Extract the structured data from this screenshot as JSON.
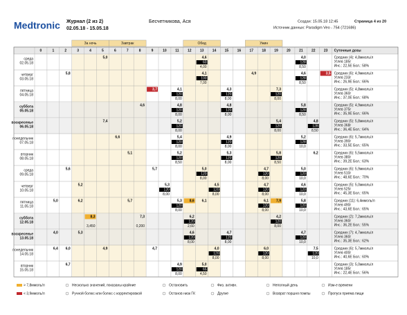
{
  "header": {
    "logo": "Medtronic",
    "title": "Журнал (2 из 2)",
    "period": "02.05.18 - 15.05.18",
    "patient": "Бесчетникова, Ася",
    "created": "Создан: 15.05.18 12:45",
    "page": "Страница 4 из 20",
    "source": "Источник данных: Paradigm Veo - 754 (721686)"
  },
  "bands": [
    {
      "label": "За ночь",
      "from": 3,
      "to": 5
    },
    {
      "label": "Завтрак",
      "from": 6,
      "to": 8
    },
    {
      "label": "Обед",
      "from": 12,
      "to": 14
    },
    {
      "label": "Ужин",
      "from": 17,
      "to": 19
    }
  ],
  "hours": [
    0,
    1,
    2,
    3,
    4,
    5,
    6,
    7,
    8,
    9,
    10,
    11,
    12,
    13,
    14,
    15,
    16,
    17,
    18,
    19,
    20,
    21,
    22,
    23
  ],
  "summary_header": "Суточные дозы",
  "rows": [
    {
      "day": "среда",
      "date": "02.05.18",
      "weekend": false,
      "avg": "Средних (4): 4,8ммоль/л",
      "carbs": "Углев 185г",
      "ins": "Инс.: 22,5Е Бол.: 58%",
      "cells": [
        {
          "h": 5,
          "bg": "5,0"
        },
        {
          "h": 13,
          "bg": "4,6",
          "c": "60",
          "i": "4,00"
        },
        {
          "h": 21,
          "bg": "4,0",
          "c": "128",
          "i": "8,50"
        }
      ]
    },
    {
      "day": "четверг",
      "date": "03.05.18",
      "weekend": false,
      "avg": "Средних (6): 4,9ммоль/л",
      "carbs": "Углев 233г",
      "ins": "Инс.: 26,9Е Бол.: 66%",
      "cells": [
        {
          "h": 2,
          "bg": "5,8"
        },
        {
          "h": 13,
          "bg": "4,1",
          "c": "100",
          "i": "7,00"
        },
        {
          "h": 17,
          "bg": "4,9"
        },
        {
          "h": 21,
          "bg": "4,6",
          "c": "128",
          "i": "8,50"
        },
        {
          "h": 23,
          "bg": "3,5",
          "f": "lo"
        }
      ]
    },
    {
      "day": "пятница",
      "date": "04.05.18",
      "weekend": false,
      "avg": "Средних (5): 4,8ммоль/л",
      "carbs": "Углев 360г",
      "ins": "Инс.: 37,0Е Бол.: 68%",
      "cells": [
        {
          "h": 9,
          "bg": "3,7",
          "f": "lo"
        },
        {
          "h": 11,
          "bg": "4,1",
          "c": "120",
          "i": "8,00"
        },
        {
          "h": 15,
          "bg": "4,3",
          "c": "120",
          "i": "8,00"
        },
        {
          "h": 19,
          "bg": "7,3",
          "c": "120",
          "i": "8,00"
        }
      ]
    },
    {
      "day": "суббота",
      "date": "05.05.18",
      "weekend": true,
      "avg": "Средних (5): 4,9ммоль/л",
      "carbs": "Углев 375г",
      "ins": "Инс.: 35,9Е Бол.: 66%",
      "cells": [
        {
          "h": 8,
          "bg": "4,6"
        },
        {
          "h": 11,
          "bg": "4,8",
          "c": "120",
          "i": "8,00"
        },
        {
          "h": 15,
          "bg": "4,8",
          "c": "120",
          "i": "8,00"
        },
        {
          "h": 21,
          "bg": "5,8",
          "c": "128",
          "i": "8,50"
        }
      ]
    },
    {
      "day": "воскресенье",
      "date": "06.05.18",
      "weekend": true,
      "avg": "Средних (5): 5,8ммоль/л",
      "carbs": "Углев 368г",
      "ins": "Инс.: 36,4Е Бол.: 64%",
      "cells": [
        {
          "h": 5,
          "bg": "7,4"
        },
        {
          "h": 11,
          "bg": "5,2",
          "c": "120",
          "i": "8,00"
        },
        {
          "h": 19,
          "bg": "5,4",
          "c": "120",
          "i": "8,00"
        },
        {
          "h": 22,
          "bg": "4,8",
          "c": "128",
          "i": "8,50"
        }
      ]
    },
    {
      "day": "понедельник",
      "date": "07.05.18",
      "weekend": false,
      "avg": "Средних (6): 5,7ммоль/л",
      "carbs": "Углев 390г",
      "ins": "Инс.: 33,5Е Бол.: 65%",
      "cells": [
        {
          "h": 6,
          "bg": "6,6"
        },
        {
          "h": 11,
          "bg": "5,4",
          "c": "120",
          "i": "8,00"
        },
        {
          "h": 15,
          "bg": "4,9",
          "c": "120",
          "i": "8,00"
        },
        {
          "h": 21,
          "bg": "5,2",
          "c": "128",
          "i": "10,0"
        }
      ]
    },
    {
      "day": "вторник",
      "date": "08.05.18",
      "weekend": false,
      "avg": "Средних (6): 5,5ммоль/л",
      "carbs": "Углев 380г",
      "ins": "Инс.: 39,2Е Бол.: 63%",
      "cells": [
        {
          "h": 7,
          "bg": "5,1"
        },
        {
          "h": 11,
          "bg": "5,2",
          "c": "120",
          "i": "8,50"
        },
        {
          "h": 15,
          "bg": "5,3",
          "c": "120",
          "i": "8,00"
        },
        {
          "h": 19,
          "bg": "5,8",
          "c": "120",
          "i": "8,50"
        },
        {
          "h": 22,
          "bg": "6,2"
        }
      ]
    },
    {
      "day": "среда",
      "date": "09.05.18",
      "weekend": false,
      "avg": "Средних (6): 5,9ммоль/л",
      "carbs": "Углев 510г",
      "ins": "Инс.: 48,6Е Бол.: 70%",
      "cells": [
        {
          "h": 2,
          "bg": "5,6"
        },
        {
          "h": 9,
          "bg": "5,7"
        },
        {
          "h": 13,
          "bg": "5,0",
          "c": "120",
          "i": "8,00"
        },
        {
          "h": 18,
          "bg": "4,7",
          "c": "120",
          "i": "8,00"
        },
        {
          "h": 21,
          "bg": "5,0",
          "c": "120",
          "i": "10,0"
        }
      ]
    },
    {
      "day": "четверг",
      "date": "10.05.18",
      "weekend": false,
      "avg": "Средних (5): 5,0ммоль/л",
      "carbs": "Углев 525г",
      "ins": "Инс.: 45,3Е Бол.: 65%",
      "cells": [
        {
          "h": 3,
          "bg": "5,2"
        },
        {
          "h": 10,
          "bg": "5,3",
          "c": "120",
          "i": "8,00"
        },
        {
          "h": 14,
          "bg": "4,5",
          "c": "120",
          "i": "8,00"
        },
        {
          "h": 18,
          "bg": "4,7",
          "c": "120",
          "i": "8,00"
        },
        {
          "h": 21,
          "bg": "4,6",
          "c": "120",
          "i": "10,0"
        }
      ]
    },
    {
      "day": "пятница",
      "date": "11.05.18",
      "weekend": false,
      "avg": "Средних (11): 6,4ммоль/л",
      "carbs": "Углев 490г",
      "ins": "Инс.: 43,6Е Бол.: 65%",
      "cells": [
        {
          "h": 1,
          "bg": "5,0"
        },
        {
          "h": 3,
          "bg": "6,2"
        },
        {
          "h": 7,
          "bg": "5,7"
        },
        {
          "h": 11,
          "bg": "5,3",
          "c": "120",
          "i": "8,00"
        },
        {
          "h": 12,
          "bg": "8,6",
          "f": "hi"
        },
        {
          "h": 13,
          "bg": "6,1"
        },
        {
          "h": 18,
          "bg": "6,1",
          "c": "120",
          "i": "8,00"
        },
        {
          "h": 19,
          "bg": "7,9",
          "f": "hi"
        },
        {
          "h": 21,
          "bg": "5,8",
          "c": "120",
          "i": "10,0"
        }
      ]
    },
    {
      "day": "суббота",
      "date": "12.05.18",
      "weekend": true,
      "avg": "Средних (2): 7,2ммоль/л",
      "carbs": "Углев 360г",
      "ins": "Инс.: 36,2Е Бол.: 55%",
      "cells": [
        {
          "h": 4,
          "bg": "8,3",
          "f": "hi",
          "i": "3,450"
        },
        {
          "h": 8,
          "bg": "7,3",
          "i": "0,200"
        },
        {
          "h": 12,
          "bg": "6,2",
          "c": "120",
          "i": "2,60"
        },
        {
          "h": 19,
          "bg": "4,2",
          "c": "120",
          "i": "8,00"
        }
      ]
    },
    {
      "day": "воскресенье",
      "date": "13.05.18",
      "weekend": true,
      "avg": "Средних (7): 4,7ммоль/л",
      "carbs": "Углев 360г",
      "ins": "Инс.: 35,3Е Бол.: 62%",
      "cells": [
        {
          "h": 1,
          "bg": "4,0"
        },
        {
          "h": 3,
          "bg": "5,3"
        },
        {
          "h": 12,
          "bg": "4,6",
          "c": "120",
          "i": "8,00"
        },
        {
          "h": 15,
          "bg": "4,7",
          "c": "120",
          "i": "8,00"
        },
        {
          "h": 21,
          "bg": "4,7",
          "c": "120",
          "i": "10,0"
        }
      ]
    },
    {
      "day": "понедельник",
      "date": "14.05.18",
      "weekend": false,
      "avg": "Средних (6): 5,7ммоль/л",
      "carbs": "Углев 400г",
      "ins": "Инс.: 40,6Е Бол.: 60%",
      "cells": [
        {
          "h": 1,
          "bg": "6,4"
        },
        {
          "h": 2,
          "bg": "6,0"
        },
        {
          "h": 5,
          "bg": "4,9"
        },
        {
          "h": 9,
          "bg": "4,7"
        },
        {
          "h": 14,
          "bg": "4,0",
          "c": "120",
          "i": "8,00"
        },
        {
          "h": 18,
          "bg": "6,0",
          "c": "120",
          "i": "8,00"
        },
        {
          "h": 22,
          "bg": "7,5",
          "c": "120",
          "i": "10,0"
        }
      ]
    },
    {
      "day": "вторник",
      "date": "15.05.18",
      "weekend": false,
      "avg": "Средних (3): 5,0ммоль/л",
      "carbs": "Углев 185г",
      "ins": "Инс.: 22,4Е Бол.: 56%",
      "cells": [
        {
          "h": 2,
          "bg": "6,7"
        },
        {
          "h": 11,
          "bg": "4,9",
          "c": "120",
          "i": "8,00"
        },
        {
          "h": 13,
          "bg": "5,0",
          "c": "65",
          "i": "4,50"
        }
      ]
    }
  ],
  "legend": [
    "> 7,8ммоль/л",
    "< 3,9ммоль/л",
    "Несколько значений, показаны крайние",
    "Ручной болюс или болюс с корректировкой",
    "Остановить",
    "Останов низк ГК",
    "Физ. активн.",
    "Другие",
    "Неполный день",
    "Возврат поршня помпы",
    "Изм-е времени",
    "Пропуск приема пищи"
  ]
}
